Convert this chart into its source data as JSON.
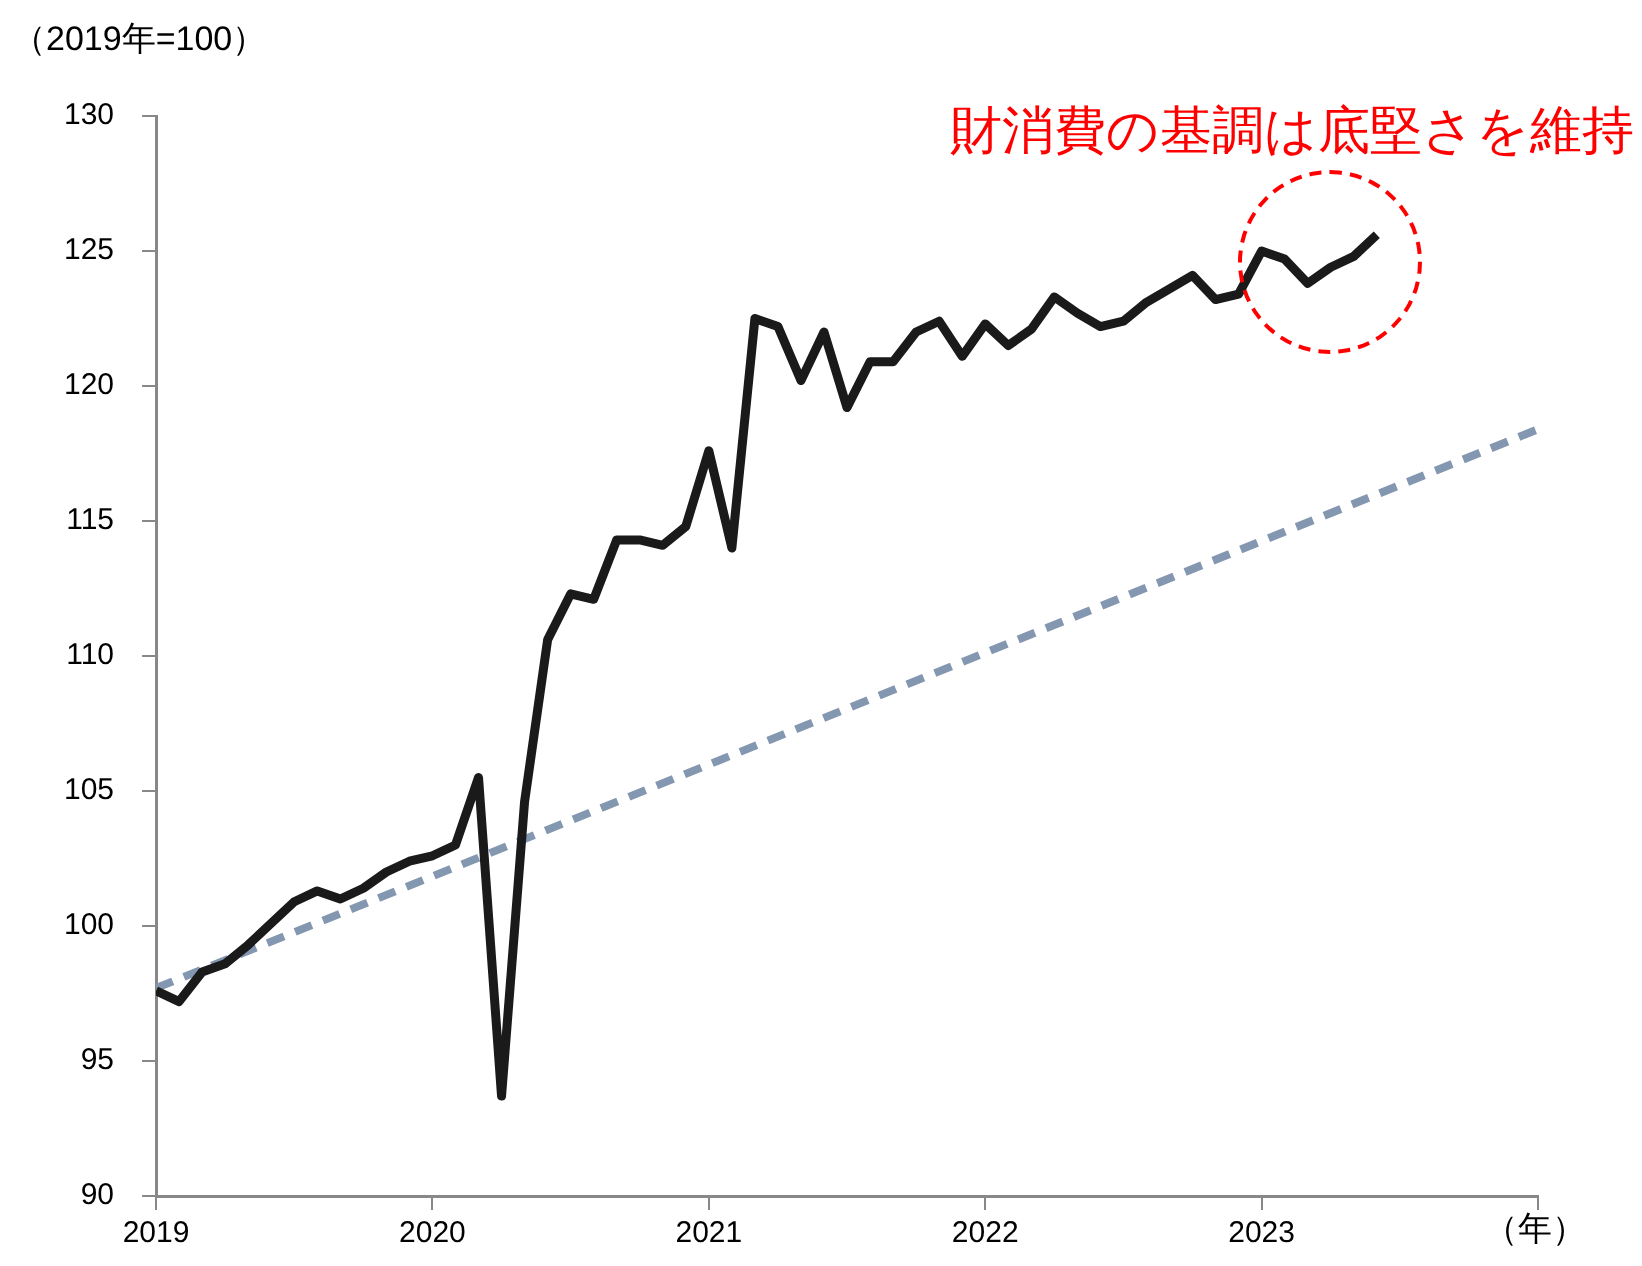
{
  "chart_data": {
    "type": "line",
    "ylabel": "（2019年=100）",
    "xlabel": "（年）",
    "x": [
      2019,
      2019.0833,
      2019.1667,
      2019.25,
      2019.3333,
      2019.4167,
      2019.5,
      2019.5833,
      2019.6667,
      2019.75,
      2019.8333,
      2019.9167,
      2020,
      2020.0833,
      2020.1667,
      2020.25,
      2020.3333,
      2020.4167,
      2020.5,
      2020.5833,
      2020.6667,
      2020.75,
      2020.8333,
      2020.9167,
      2021,
      2021.0833,
      2021.1667,
      2021.25,
      2021.3333,
      2021.4167,
      2021.5,
      2021.5833,
      2021.6667,
      2021.75,
      2021.8333,
      2021.9167,
      2022,
      2022.0833,
      2022.1667,
      2022.25,
      2022.3333,
      2022.4167,
      2022.5,
      2022.5833,
      2022.6667,
      2022.75,
      2022.8333,
      2022.9167,
      2023,
      2023.0833,
      2023.1667,
      2023.25,
      2023.3333,
      2023.4167
    ],
    "series": [
      {
        "color": "#1a1a1a",
        "line_style": "solid",
        "values": [
          97.6,
          97.2,
          98.3,
          98.6,
          99.3,
          100.1,
          100.9,
          101.3,
          101.0,
          101.4,
          102.0,
          102.4,
          102.6,
          103.0,
          105.5,
          93.7,
          104.6,
          110.6,
          112.3,
          112.1,
          114.3,
          114.3,
          114.1,
          114.8,
          117.6,
          114.0,
          122.5,
          122.2,
          120.2,
          122.0,
          119.2,
          120.9,
          120.9,
          122.0,
          122.4,
          121.1,
          122.3,
          121.5,
          122.1,
          123.3,
          122.7,
          122.2,
          122.4,
          123.1,
          123.6,
          124.1,
          123.2,
          123.4,
          125.0,
          124.7,
          123.8,
          124.4,
          124.8,
          125.6
        ]
      },
      {
        "color": "#8497b0",
        "line_style": "dashed",
        "x": [
          2019,
          2024
        ],
        "values": [
          97.7,
          118.4
        ]
      }
    ],
    "xlim": [
      2019,
      2024
    ],
    "xticks": [
      2019,
      2020,
      2021,
      2022,
      2023,
      {
        "value": 2024,
        "label": null
      }
    ],
    "ylim": [
      90,
      130
    ],
    "yticks": [
      90,
      95,
      100,
      105,
      110,
      115,
      120,
      125,
      130
    ],
    "grid": false,
    "legend": false,
    "marker": "none",
    "annotations": [
      {
        "text": "財消費の基調は底堅さを維持",
        "x": 2023.25,
        "y": 124.6
      }
    ]
  }
}
